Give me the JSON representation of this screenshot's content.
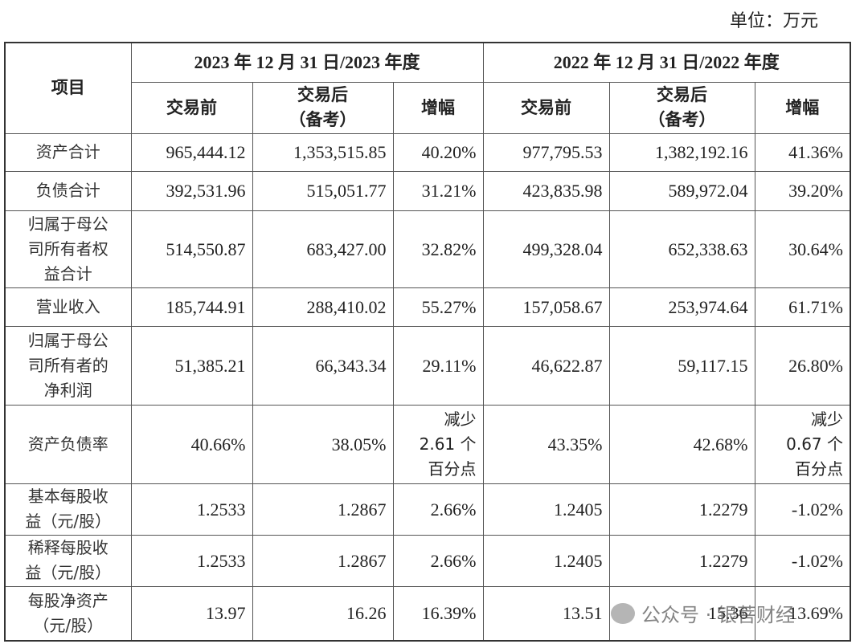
{
  "header": {
    "unit": "单位：万元"
  },
  "table": {
    "item_header": "项目",
    "periods": [
      {
        "title": "2023 年 12 月 31 日/2023 年度",
        "columns": [
          "交易前",
          "交易后\n（备考）",
          "增幅"
        ]
      },
      {
        "title": "2022 年 12 月 31 日/2022 年度",
        "columns": [
          "交易前",
          "交易后\n（备考）",
          "增幅"
        ]
      }
    ],
    "rows": [
      {
        "label": "资产合计",
        "cells": [
          "965,444.12",
          "1,353,515.85",
          "40.20%",
          "977,795.53",
          "1,382,192.16",
          "41.36%"
        ]
      },
      {
        "label": "负债合计",
        "cells": [
          "392,531.96",
          "515,051.77",
          "31.21%",
          "423,835.98",
          "589,972.04",
          "39.20%"
        ]
      },
      {
        "label": "归属于母公\n司所有者权\n益合计",
        "cells": [
          "514,550.87",
          "683,427.00",
          "32.82%",
          "499,328.04",
          "652,338.63",
          "30.64%"
        ]
      },
      {
        "label": "营业收入",
        "cells": [
          "185,744.91",
          "288,410.02",
          "55.27%",
          "157,058.67",
          "253,974.64",
          "61.71%"
        ]
      },
      {
        "label": "归属于母公\n司所有者的\n净利润",
        "cells": [
          "51,385.21",
          "66,343.34",
          "29.11%",
          "46,622.87",
          "59,117.15",
          "26.80%"
        ]
      },
      {
        "label": "资产负债率",
        "cells": [
          "40.66%",
          "38.05%",
          "减少\n2.61 个\n百分点",
          "43.35%",
          "42.68%",
          "减少\n0.67 个\n百分点"
        ]
      },
      {
        "label": "基本每股收\n益（元/股）",
        "cells": [
          "1.2533",
          "1.2867",
          "2.66%",
          "1.2405",
          "1.2279",
          "-1.02%"
        ]
      },
      {
        "label": "稀释每股收\n益（元/股）",
        "cells": [
          "1.2533",
          "1.2867",
          "2.66%",
          "1.2405",
          "1.2279",
          "-1.02%"
        ]
      },
      {
        "label": "每股净资产\n（元/股）",
        "cells": [
          "13.97",
          "16.26",
          "16.39%",
          "13.51",
          "15.36",
          "13.69%"
        ]
      }
    ]
  },
  "watermark": "公众号 · 银菩财经"
}
